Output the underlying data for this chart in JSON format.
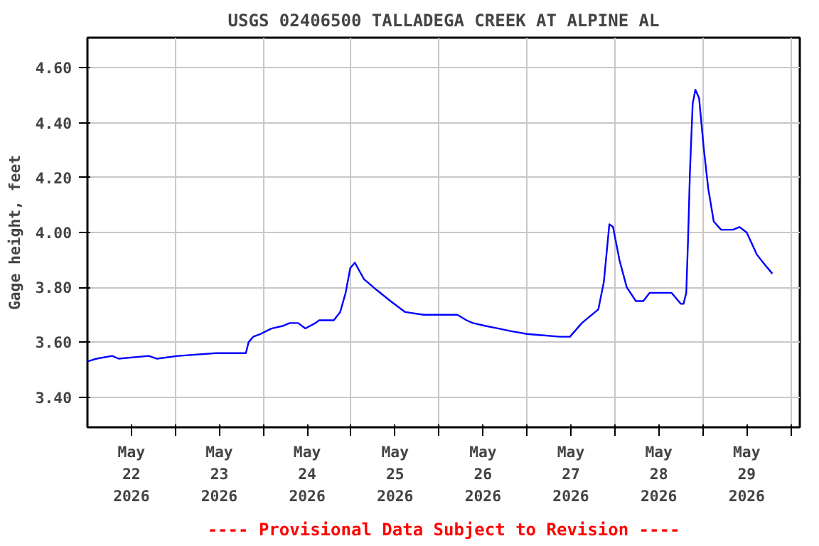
{
  "chart_data": {
    "type": "line",
    "title": "USGS 02406500 TALLADEGA CREEK AT ALPINE AL",
    "ylabel": "Gage height, feet",
    "annotations": [
      "---- Provisional Data Subject to Revision ----"
    ],
    "x": [
      "2026-05-22T00:00",
      "2026-05-22T02:30",
      "2026-05-22T06:45",
      "2026-05-22T08:30",
      "2026-05-22T16:45",
      "2026-05-22T19:00",
      "2026-05-23T00:45",
      "2026-05-23T11:00",
      "2026-05-23T19:15",
      "2026-05-23T20:00",
      "2026-05-23T21:15",
      "2026-05-23T23:15",
      "2026-05-24T02:15",
      "2026-05-24T05:30",
      "2026-05-24T07:15",
      "2026-05-24T09:30",
      "2026-05-24T11:30",
      "2026-05-24T14:15",
      "2026-05-24T15:15",
      "2026-05-24T19:15",
      "2026-05-24T21:00",
      "2026-05-24T22:30",
      "2026-05-24T23:45",
      "2026-05-25T01:00",
      "2026-05-25T03:30",
      "2026-05-25T07:00",
      "2026-05-25T10:45",
      "2026-05-25T14:45",
      "2026-05-25T19:45",
      "2026-05-25T21:30",
      "2026-05-26T05:00",
      "2026-05-26T07:30",
      "2026-05-26T09:15",
      "2026-05-26T12:30",
      "2026-05-26T16:15",
      "2026-05-26T19:45",
      "2026-05-27T00:00",
      "2026-05-27T09:00",
      "2026-05-27T11:45",
      "2026-05-27T15:00",
      "2026-05-27T19:30",
      "2026-05-27T21:00",
      "2026-05-27T22:30",
      "2026-05-27T23:30",
      "2026-05-28T01:15",
      "2026-05-28T03:15",
      "2026-05-28T05:45",
      "2026-05-28T07:45",
      "2026-05-28T09:30",
      "2026-05-28T13:00",
      "2026-05-28T15:30",
      "2026-05-28T18:00",
      "2026-05-28T18:45",
      "2026-05-28T19:30",
      "2026-05-28T20:00",
      "2026-05-28T20:30",
      "2026-05-28T21:15",
      "2026-05-28T22:00",
      "2026-05-28T23:00",
      "2026-05-29T00:15",
      "2026-05-29T01:30",
      "2026-05-29T03:00",
      "2026-05-29T05:00",
      "2026-05-29T08:15",
      "2026-05-29T10:00",
      "2026-05-29T12:00",
      "2026-05-29T14:45",
      "2026-05-29T16:30",
      "2026-05-29T19:00"
    ],
    "series": [
      {
        "color": "#0000ff",
        "values": [
          3.53,
          3.54,
          3.55,
          3.54,
          3.55,
          3.54,
          3.55,
          3.56,
          3.56,
          3.6,
          3.62,
          3.63,
          3.65,
          3.66,
          3.67,
          3.67,
          3.65,
          3.67,
          3.68,
          3.68,
          3.71,
          3.78,
          3.87,
          3.89,
          3.83,
          3.79,
          3.75,
          3.71,
          3.7,
          3.7,
          3.7,
          3.68,
          3.67,
          3.66,
          3.65,
          3.64,
          3.63,
          3.62,
          3.62,
          3.67,
          3.72,
          3.82,
          4.03,
          4.02,
          3.9,
          3.8,
          3.75,
          3.75,
          3.78,
          3.78,
          3.78,
          3.74,
          3.74,
          3.78,
          3.98,
          4.22,
          4.47,
          4.52,
          4.49,
          4.31,
          4.16,
          4.04,
          4.01,
          4.01,
          4.02,
          4.0,
          3.92,
          3.89,
          3.85
        ]
      }
    ],
    "xlim": [
      "2026-05-22T00:00",
      "2026-05-30T02:30"
    ],
    "xticks": [
      {
        "value": "2026-05-22T12:00",
        "label": "May\n22\n2026"
      },
      {
        "value": "2026-05-23T00:00",
        "label": null
      },
      {
        "value": "2026-05-23T12:00",
        "label": "May\n23\n2026"
      },
      {
        "value": "2026-05-24T00:00",
        "label": null
      },
      {
        "value": "2026-05-24T12:00",
        "label": "May\n24\n2026"
      },
      {
        "value": "2026-05-25T00:00",
        "label": null
      },
      {
        "value": "2026-05-25T12:00",
        "label": "May\n25\n2026"
      },
      {
        "value": "2026-05-26T00:00",
        "label": null
      },
      {
        "value": "2026-05-26T12:00",
        "label": "May\n26\n2026"
      },
      {
        "value": "2026-05-27T00:00",
        "label": null
      },
      {
        "value": "2026-05-27T12:00",
        "label": "May\n27\n2026"
      },
      {
        "value": "2026-05-28T00:00",
        "label": null
      },
      {
        "value": "2026-05-28T12:00",
        "label": "May\n28\n2026"
      },
      {
        "value": "2026-05-29T00:00",
        "label": null
      },
      {
        "value": "2026-05-29T12:00",
        "label": "May\n29\n2026"
      },
      {
        "value": "2026-05-30T00:00",
        "label": null
      }
    ],
    "ylim": [
      3.29,
      4.71
    ],
    "yticks": [
      {
        "value": 3.4,
        "label": "3.40"
      },
      {
        "value": 3.6,
        "label": "3.60"
      },
      {
        "value": 3.8,
        "label": "3.80"
      },
      {
        "value": 4.0,
        "label": "4.00"
      },
      {
        "value": 4.2,
        "label": "4.20"
      },
      {
        "value": 4.4,
        "label": "4.40"
      },
      {
        "value": 4.6,
        "label": "4.60"
      }
    ],
    "grid": true,
    "line_style": "solid"
  }
}
